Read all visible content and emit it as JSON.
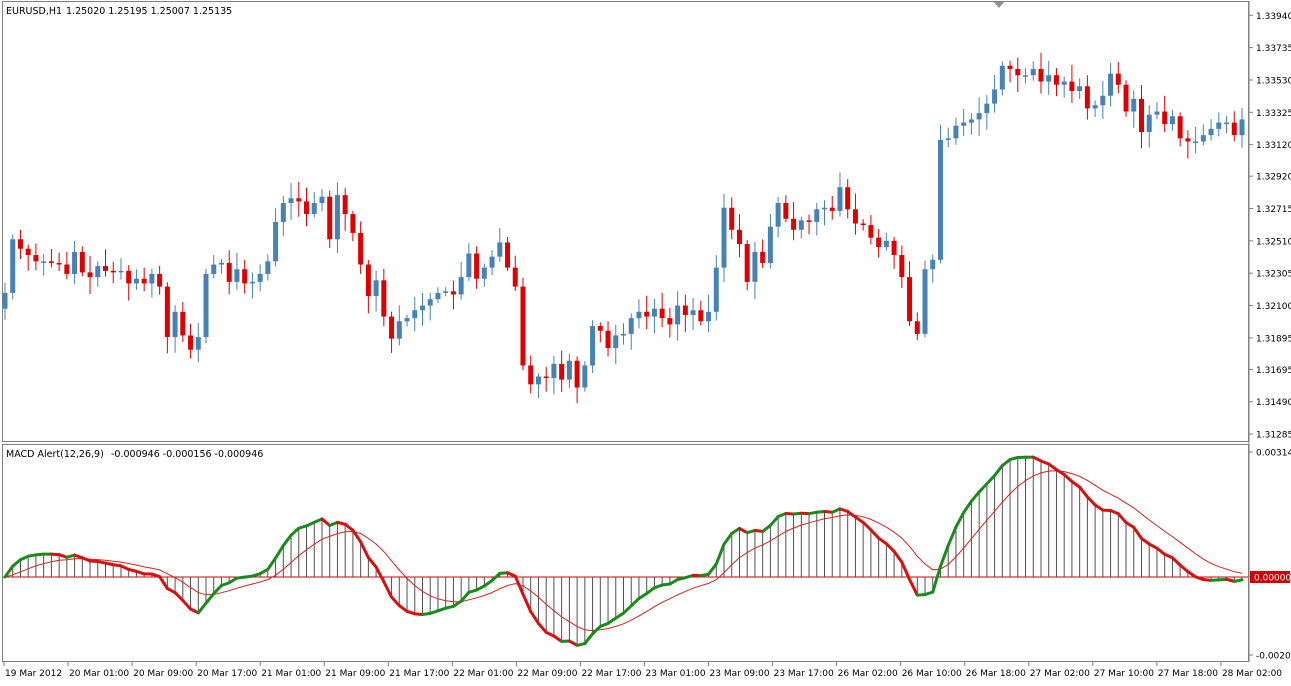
{
  "price_header": {
    "symbol": "EURUSD,H1",
    "ohlc": "1.25020 1.25195 1.25007 1.25135"
  },
  "macd_header": {
    "name": "MACD Alert(12,26,9)",
    "values": "-0.000946 -0.000156 -0.000946"
  },
  "colors": {
    "bull": "#4682b4",
    "bear": "#e00000",
    "macd_up": "#1a8a1a",
    "macd_down": "#d81010",
    "signal": "#d82020",
    "grid": "#808080",
    "label_box": "#d00000"
  },
  "chart_data": [
    {
      "type": "candlestick",
      "title": "EURUSD,H1",
      "ylim": [
        1.3126,
        1.3398
      ],
      "y_ticks": [
        "1.33940",
        "1.33735",
        "1.33530",
        "1.33325",
        "1.33120",
        "1.32920",
        "1.32715",
        "1.32510",
        "1.32305",
        "1.32100",
        "1.31895",
        "1.31695",
        "1.31490",
        "1.31285"
      ],
      "x_ticks": [
        "19 Mar 2012",
        "20 Mar 01:00",
        "20 Mar 09:00",
        "20 Mar 17:00",
        "21 Mar 01:00",
        "21 Mar 09:00",
        "21 Mar 17:00",
        "22 Mar 01:00",
        "22 Mar 09:00",
        "22 Mar 17:00",
        "23 Mar 01:00",
        "23 Mar 09:00",
        "23 Mar 17:00",
        "26 Mar 02:00",
        "26 Mar 10:00",
        "26 Mar 18:00",
        "27 Mar 02:00",
        "27 Mar 10:00",
        "27 Mar 18:00",
        "28 Mar 02:00"
      ],
      "closes": [
        1.3218,
        1.3252,
        1.3246,
        1.3242,
        1.3238,
        1.3238,
        1.3237,
        1.3236,
        1.323,
        1.3244,
        1.3231,
        1.3228,
        1.3235,
        1.3232,
        1.3231,
        1.3232,
        1.3224,
        1.3227,
        1.3224,
        1.323,
        1.3222,
        1.319,
        1.3206,
        1.3191,
        1.3182,
        1.319,
        1.323,
        1.3236,
        1.3237,
        1.3225,
        1.3233,
        1.3224,
        1.3225,
        1.323,
        1.3238,
        1.3263,
        1.3275,
        1.3278,
        1.3276,
        1.3268,
        1.3275,
        1.3279,
        1.3252,
        1.328,
        1.3268,
        1.3256,
        1.3236,
        1.3216,
        1.3226,
        1.3203,
        1.3189,
        1.32,
        1.3202,
        1.3207,
        1.321,
        1.3214,
        1.3218,
        1.3219,
        1.3217,
        1.3228,
        1.3243,
        1.3227,
        1.3234,
        1.3241,
        1.325,
        1.3234,
        1.3222,
        1.3172,
        1.316,
        1.3165,
        1.3164,
        1.3173,
        1.3163,
        1.3175,
        1.3158,
        1.3172,
        1.3197,
        1.3194,
        1.3183,
        1.3191,
        1.3192,
        1.3202,
        1.3206,
        1.3203,
        1.3208,
        1.3202,
        1.3198,
        1.321,
        1.3204,
        1.3207,
        1.32,
        1.3206,
        1.3234,
        1.3272,
        1.3258,
        1.3249,
        1.3225,
        1.3244,
        1.3237,
        1.326,
        1.3275,
        1.3265,
        1.3258,
        1.3264,
        1.3263,
        1.3271,
        1.3272,
        1.327,
        1.3285,
        1.3271,
        1.3262,
        1.3261,
        1.3253,
        1.3247,
        1.3251,
        1.3242,
        1.3228,
        1.32,
        1.3192,
        1.3233,
        1.3239,
        1.3315,
        1.3316,
        1.3324,
        1.3326,
        1.3328,
        1.3332,
        1.3338,
        1.3347,
        1.3362,
        1.336,
        1.3356,
        1.3356,
        1.336,
        1.3352,
        1.3356,
        1.335,
        1.3352,
        1.3346,
        1.3349,
        1.3335,
        1.3337,
        1.3343,
        1.3357,
        1.335,
        1.3333,
        1.3341,
        1.332,
        1.3331,
        1.3333,
        1.3325,
        1.333,
        1.3316,
        1.3314,
        1.3314,
        1.3318,
        1.3322,
        1.3326,
        1.3326,
        1.3318,
        1.3328
      ]
    },
    {
      "type": "bar",
      "title": "MACD Alert(12,26,9)",
      "ylim": [
        -0.00203,
        0.00314
      ],
      "y_ticks": [
        "0.00314",
        "0.00000",
        "-0.00203"
      ],
      "current_value_label": "0.00000"
    }
  ]
}
